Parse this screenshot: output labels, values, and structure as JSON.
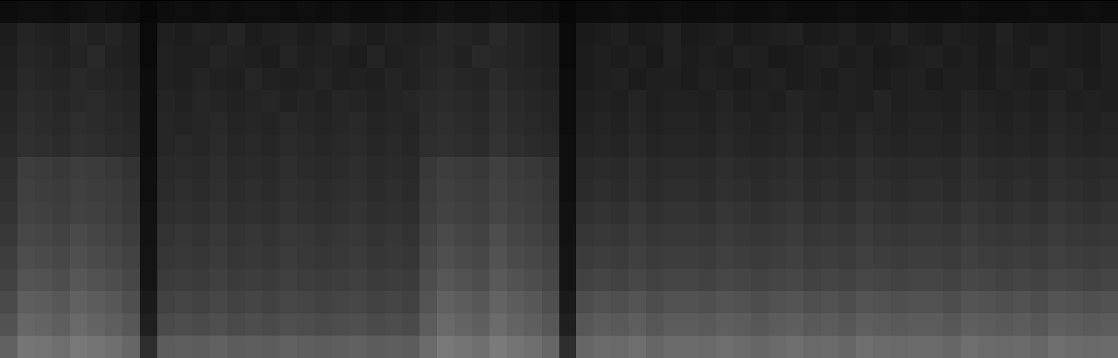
{
  "chart_data": {
    "type": "heatmap",
    "tick_labels": false,
    "value_range": [
      0,
      100
    ],
    "cells": [
      [
        5,
        6,
        6,
        5,
        6,
        7,
        6,
        5,
        3,
        5,
        6,
        5,
        6,
        5,
        6,
        6,
        5,
        6,
        5,
        6,
        5,
        5,
        6,
        5,
        6,
        7,
        6,
        6,
        7,
        6,
        6,
        5,
        3,
        5,
        5,
        6,
        5,
        5,
        6,
        5,
        5,
        6,
        5,
        5,
        6,
        5,
        5,
        5,
        6,
        5,
        5,
        6,
        5,
        5,
        5,
        6,
        5,
        5,
        5,
        6,
        5,
        5,
        6,
        5
      ],
      [
        11,
        14,
        13,
        12,
        15,
        13,
        14,
        12,
        4,
        12,
        11,
        13,
        12,
        14,
        11,
        12,
        13,
        11,
        12,
        14,
        12,
        11,
        13,
        12,
        13,
        15,
        14,
        13,
        16,
        14,
        13,
        12,
        4,
        10,
        11,
        12,
        10,
        11,
        13,
        10,
        11,
        12,
        10,
        11,
        12,
        13,
        10,
        11,
        12,
        10,
        11,
        13,
        11,
        10,
        12,
        11,
        10,
        13,
        11,
        10,
        12,
        11,
        10,
        12
      ],
      [
        12,
        15,
        14,
        13,
        14,
        16,
        13,
        12,
        4,
        13,
        12,
        12,
        14,
        13,
        12,
        11,
        14,
        12,
        13,
        12,
        11,
        14,
        12,
        13,
        14,
        15,
        13,
        16,
        15,
        14,
        13,
        12,
        4,
        11,
        12,
        11,
        12,
        10,
        13,
        11,
        12,
        11,
        13,
        12,
        10,
        11,
        12,
        13,
        11,
        12,
        10,
        11,
        12,
        13,
        11,
        12,
        10,
        12,
        11,
        13,
        12,
        11,
        10,
        12
      ],
      [
        13,
        16,
        15,
        14,
        16,
        15,
        14,
        13,
        5,
        13,
        12,
        14,
        13,
        12,
        15,
        13,
        12,
        13,
        14,
        12,
        13,
        12,
        14,
        13,
        15,
        16,
        15,
        14,
        17,
        15,
        14,
        13,
        5,
        11,
        12,
        13,
        11,
        12,
        12,
        11,
        13,
        12,
        11,
        12,
        13,
        11,
        12,
        11,
        13,
        12,
        11,
        12,
        13,
        11,
        12,
        12,
        11,
        13,
        12,
        11,
        12,
        13,
        11,
        12
      ],
      [
        14,
        17,
        16,
        15,
        16,
        17,
        15,
        14,
        5,
        14,
        13,
        15,
        14,
        13,
        14,
        15,
        13,
        14,
        13,
        15,
        14,
        13,
        14,
        15,
        16,
        17,
        16,
        15,
        18,
        16,
        15,
        14,
        5,
        12,
        13,
        12,
        14,
        12,
        13,
        13,
        12,
        14,
        12,
        13,
        12,
        14,
        13,
        12,
        13,
        12,
        14,
        12,
        13,
        13,
        12,
        14,
        13,
        12,
        13,
        12,
        14,
        12,
        13,
        12
      ],
      [
        15,
        18,
        17,
        16,
        18,
        17,
        16,
        15,
        5,
        15,
        14,
        15,
        16,
        14,
        15,
        14,
        16,
        15,
        14,
        15,
        16,
        14,
        15,
        14,
        17,
        18,
        17,
        16,
        19,
        17,
        16,
        15,
        5,
        13,
        14,
        13,
        15,
        13,
        14,
        14,
        13,
        15,
        14,
        13,
        14,
        15,
        13,
        14,
        13,
        15,
        14,
        13,
        14,
        14,
        13,
        15,
        14,
        13,
        14,
        13,
        15,
        14,
        13,
        14
      ],
      [
        16,
        19,
        18,
        17,
        19,
        18,
        17,
        16,
        5,
        15,
        16,
        15,
        17,
        15,
        16,
        15,
        17,
        16,
        15,
        16,
        17,
        15,
        16,
        15,
        18,
        19,
        18,
        17,
        20,
        18,
        17,
        16,
        6,
        14,
        15,
        14,
        16,
        14,
        15,
        15,
        14,
        16,
        15,
        14,
        15,
        16,
        14,
        15,
        14,
        16,
        15,
        14,
        15,
        15,
        14,
        16,
        15,
        14,
        15,
        14,
        16,
        15,
        14,
        15
      ],
      [
        18,
        24,
        23,
        22,
        24,
        23,
        22,
        20,
        6,
        16,
        17,
        16,
        18,
        16,
        17,
        16,
        18,
        17,
        16,
        17,
        18,
        16,
        17,
        16,
        22,
        24,
        23,
        22,
        25,
        23,
        22,
        20,
        6,
        16,
        17,
        16,
        18,
        16,
        17,
        17,
        16,
        18,
        17,
        16,
        17,
        18,
        16,
        17,
        16,
        18,
        17,
        16,
        17,
        17,
        16,
        18,
        17,
        16,
        17,
        16,
        18,
        17,
        16,
        17
      ],
      [
        19,
        25,
        24,
        23,
        25,
        24,
        23,
        21,
        6,
        17,
        18,
        17,
        19,
        17,
        18,
        17,
        19,
        18,
        17,
        18,
        19,
        17,
        18,
        17,
        23,
        25,
        24,
        23,
        26,
        24,
        23,
        21,
        6,
        17,
        18,
        17,
        19,
        17,
        18,
        18,
        17,
        19,
        18,
        17,
        18,
        19,
        17,
        18,
        17,
        19,
        18,
        17,
        18,
        18,
        17,
        19,
        18,
        17,
        18,
        17,
        19,
        18,
        17,
        18
      ],
      [
        20,
        26,
        25,
        24,
        26,
        25,
        24,
        22,
        7,
        18,
        19,
        18,
        20,
        18,
        19,
        18,
        20,
        19,
        18,
        19,
        20,
        18,
        19,
        18,
        24,
        26,
        25,
        24,
        27,
        25,
        24,
        22,
        7,
        19,
        20,
        19,
        21,
        19,
        20,
        20,
        19,
        21,
        20,
        19,
        20,
        21,
        19,
        20,
        19,
        21,
        20,
        19,
        20,
        20,
        19,
        21,
        20,
        19,
        20,
        19,
        21,
        20,
        19,
        20
      ],
      [
        22,
        28,
        27,
        26,
        29,
        27,
        26,
        24,
        7,
        20,
        21,
        20,
        22,
        20,
        21,
        20,
        22,
        21,
        20,
        21,
        22,
        20,
        21,
        20,
        26,
        29,
        27,
        26,
        30,
        27,
        26,
        24,
        7,
        21,
        22,
        21,
        23,
        21,
        22,
        22,
        21,
        23,
        22,
        21,
        22,
        23,
        21,
        22,
        21,
        23,
        22,
        21,
        22,
        22,
        21,
        23,
        22,
        21,
        22,
        21,
        23,
        22,
        21,
        22
      ],
      [
        24,
        30,
        29,
        28,
        31,
        29,
        28,
        26,
        8,
        21,
        22,
        21,
        23,
        21,
        22,
        21,
        23,
        22,
        21,
        22,
        23,
        21,
        22,
        21,
        28,
        31,
        29,
        28,
        32,
        29,
        28,
        26,
        8,
        23,
        24,
        23,
        25,
        23,
        24,
        24,
        23,
        25,
        24,
        23,
        24,
        25,
        23,
        24,
        23,
        25,
        24,
        23,
        24,
        24,
        23,
        25,
        24,
        23,
        24,
        23,
        25,
        24,
        23,
        24
      ],
      [
        26,
        33,
        32,
        30,
        34,
        32,
        30,
        28,
        8,
        23,
        24,
        23,
        25,
        23,
        24,
        23,
        25,
        24,
        23,
        24,
        25,
        23,
        24,
        23,
        30,
        34,
        32,
        30,
        35,
        32,
        30,
        28,
        8,
        26,
        27,
        26,
        28,
        26,
        27,
        27,
        26,
        28,
        27,
        26,
        27,
        28,
        26,
        27,
        26,
        28,
        27,
        26,
        27,
        27,
        26,
        28,
        27,
        26,
        27,
        26,
        28,
        27,
        26,
        27
      ],
      [
        29,
        37,
        36,
        34,
        38,
        36,
        34,
        31,
        10,
        26,
        27,
        26,
        28,
        26,
        27,
        26,
        28,
        27,
        26,
        27,
        28,
        26,
        27,
        26,
        33,
        38,
        36,
        34,
        39,
        36,
        34,
        31,
        10,
        30,
        32,
        31,
        33,
        30,
        32,
        32,
        31,
        33,
        32,
        30,
        32,
        33,
        31,
        32,
        30,
        33,
        32,
        31,
        32,
        32,
        30,
        33,
        32,
        31,
        32,
        30,
        33,
        32,
        31,
        32
      ],
      [
        32,
        40,
        39,
        37,
        41,
        39,
        37,
        34,
        12,
        29,
        30,
        29,
        31,
        29,
        30,
        29,
        31,
        30,
        29,
        30,
        31,
        29,
        30,
        29,
        36,
        41,
        39,
        37,
        42,
        39,
        37,
        34,
        12,
        34,
        36,
        35,
        37,
        34,
        36,
        36,
        35,
        37,
        36,
        34,
        36,
        37,
        35,
        36,
        34,
        37,
        36,
        35,
        36,
        36,
        34,
        37,
        36,
        35,
        36,
        34,
        37,
        36,
        35,
        36
      ],
      [
        38,
        46,
        45,
        43,
        47,
        45,
        43,
        40,
        18,
        36,
        37,
        36,
        38,
        36,
        37,
        36,
        38,
        37,
        36,
        37,
        38,
        36,
        37,
        36,
        42,
        47,
        45,
        43,
        48,
        45,
        43,
        40,
        18,
        40,
        42,
        41,
        43,
        40,
        42,
        42,
        41,
        43,
        42,
        40,
        42,
        43,
        41,
        42,
        40,
        43,
        42,
        41,
        42,
        42,
        40,
        43,
        42,
        41,
        42,
        40,
        43,
        42,
        41,
        42
      ]
    ]
  }
}
